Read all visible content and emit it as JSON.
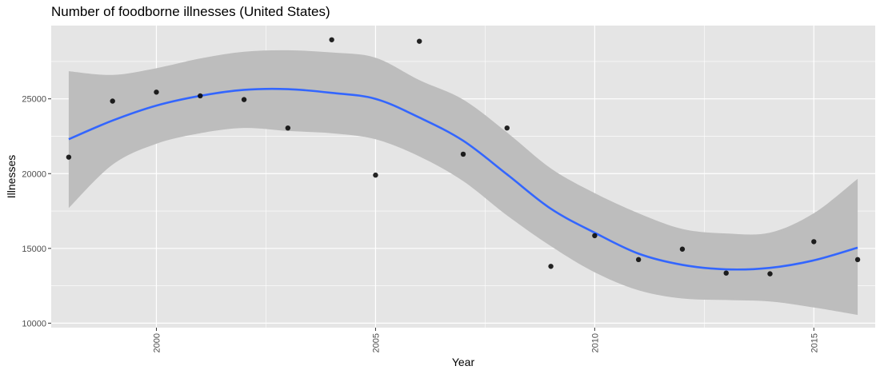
{
  "chart_data": {
    "type": "scatter",
    "title": "Number of foodborne illnesses (United States)",
    "xlabel": "Year",
    "ylabel": "Illnesses",
    "xlim": [
      1997.6,
      2016.4
    ],
    "ylim": [
      9700,
      29900
    ],
    "x_ticks": [
      2000,
      2005,
      2010,
      2015
    ],
    "x_tick_labels": [
      "2000",
      "2005",
      "2010",
      "2015"
    ],
    "x_minor_ticks": [
      1997.5,
      2002.5,
      2007.5,
      2012.5
    ],
    "y_ticks": [
      10000,
      15000,
      20000,
      25000
    ],
    "y_tick_labels": [
      "10000",
      "15000",
      "20000",
      "25000"
    ],
    "y_minor_ticks": [
      12500,
      17500,
      22500,
      27500
    ],
    "grid": true,
    "legend": "none",
    "colors": {
      "panel": "#e5e5e5",
      "grid": "#ffffff",
      "points": "#000000",
      "smooth_line": "#3366ff",
      "ribbon": "#bdbdbd"
    },
    "points": {
      "x": [
        1998,
        1999,
        2000,
        2001,
        2002,
        2003,
        2004,
        2005,
        2006,
        2007,
        2008,
        2009,
        2010,
        2011,
        2012,
        2013,
        2014,
        2015,
        2016
      ],
      "y": [
        21100,
        24850,
        25450,
        25200,
        24950,
        23050,
        28950,
        19900,
        28850,
        21300,
        23050,
        13800,
        15850,
        14250,
        14950,
        13350,
        13300,
        15450,
        14250
      ]
    },
    "smooth": {
      "x": [
        1998,
        1999,
        2000,
        2001,
        2002,
        2003,
        2004,
        2005,
        2006,
        2007,
        2008,
        2009,
        2010,
        2011,
        2012,
        2013,
        2014,
        2015,
        2016
      ],
      "y": [
        22300,
        23550,
        24550,
        25200,
        25600,
        25650,
        25400,
        25000,
        23750,
        22200,
        19950,
        17650,
        16050,
        14650,
        13900,
        13600,
        13700,
        14200,
        15050
      ],
      "lower": [
        17700,
        20600,
        22000,
        22700,
        23050,
        22850,
        22700,
        22300,
        21150,
        19500,
        17200,
        15150,
        13400,
        12200,
        11650,
        11550,
        11450,
        11050,
        10550
      ],
      "upper": [
        26850,
        26600,
        27050,
        27700,
        28150,
        28250,
        28100,
        27750,
        26250,
        24950,
        22750,
        20350,
        18700,
        17350,
        16300,
        16000,
        16050,
        17350,
        19650
      ]
    }
  }
}
